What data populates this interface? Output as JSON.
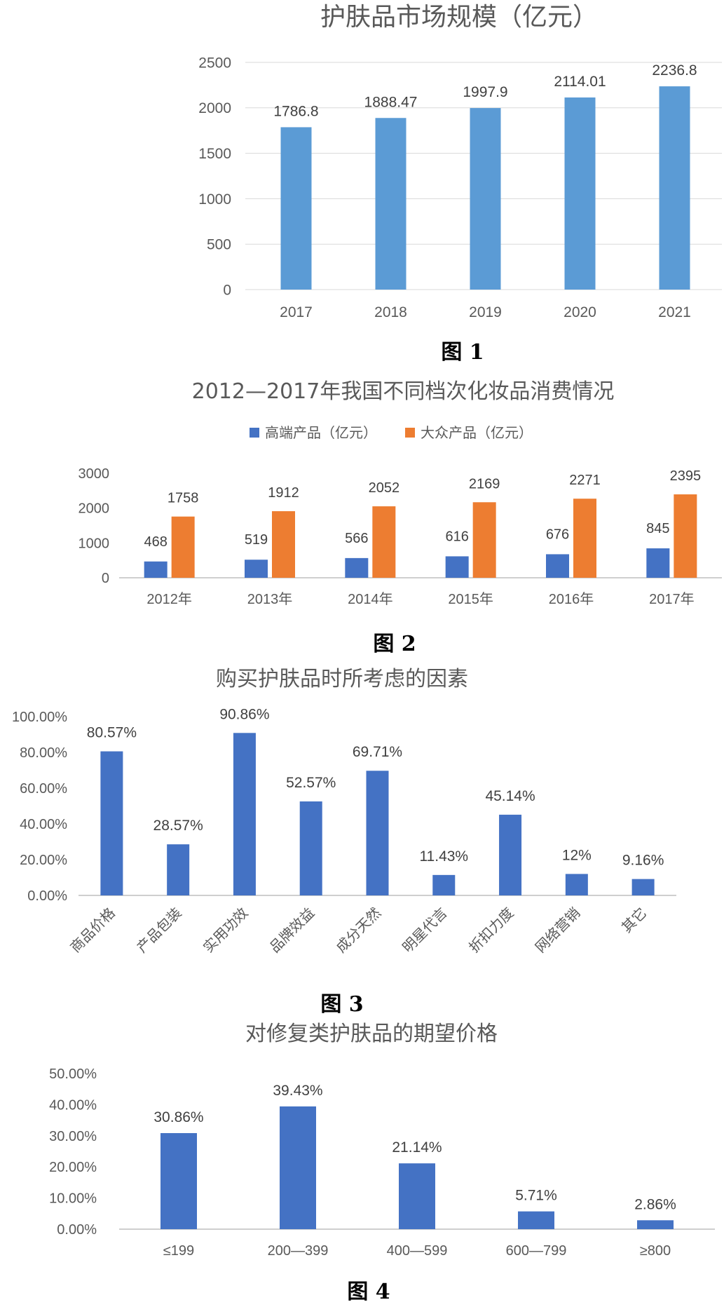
{
  "chart_data": [
    {
      "type": "bar",
      "title": "护肤品市场规模（亿元）",
      "caption": "图 1",
      "categories": [
        "2017",
        "2018",
        "2019",
        "2020",
        "2021"
      ],
      "values": [
        1786.8,
        1888.47,
        1997.9,
        2114.01,
        2236.8
      ],
      "value_labels": [
        "1786.8",
        "1888.47",
        "1997.9",
        "2114.01",
        "2236.8"
      ],
      "yticks": [
        "0",
        "500",
        "1000",
        "1500",
        "2000",
        "2500"
      ],
      "ylim": [
        0,
        2500
      ],
      "grid": true,
      "color": "#5b9bd5"
    },
    {
      "type": "bar",
      "title": "2012—2017年我国不同档次化妆品消费情况",
      "caption": "图 2",
      "categories": [
        "2012年",
        "2013年",
        "2014年",
        "2015年",
        "2016年",
        "2017年"
      ],
      "series": [
        {
          "name": "高端产品（亿元）",
          "values": [
            468,
            519,
            566,
            616,
            676,
            845
          ],
          "color": "#4472c4"
        },
        {
          "name": "大众产品（亿元）",
          "values": [
            1758,
            1912,
            2052,
            2169,
            2271,
            2395
          ],
          "color": "#ed7d31"
        }
      ],
      "yticks": [
        "0",
        "1000",
        "2000",
        "3000"
      ],
      "ylim": [
        0,
        3000
      ],
      "legend": "top",
      "grid": false
    },
    {
      "type": "bar",
      "title": "购买护肤品时所考虑的因素",
      "caption": "图 3",
      "categories": [
        "商品价格",
        "产品包装",
        "实用功效",
        "品牌效益",
        "成分天然",
        "明星代言",
        "折扣力度",
        "网络营销",
        "其它"
      ],
      "values": [
        80.57,
        28.57,
        90.86,
        52.57,
        69.71,
        11.43,
        45.14,
        12,
        9.16
      ],
      "value_labels": [
        "80.57%",
        "28.57%",
        "90.86%",
        "52.57%",
        "69.71%",
        "11.43%",
        "45.14%",
        "12%",
        "9.16%"
      ],
      "yticks": [
        "0.00%",
        "20.00%",
        "40.00%",
        "60.00%",
        "80.00%",
        "100.00%"
      ],
      "ylim": [
        0,
        100
      ],
      "grid": false,
      "color": "#4472c4"
    },
    {
      "type": "bar",
      "title": "对修复类护肤品的期望价格",
      "caption": "图 4",
      "categories": [
        "≤199",
        "200—399",
        "400—599",
        "600—799",
        "≥800"
      ],
      "values": [
        30.86,
        39.43,
        21.14,
        5.71,
        2.86
      ],
      "value_labels": [
        "30.86%",
        "39.43%",
        "21.14%",
        "5.71%",
        "2.86%"
      ],
      "yticks": [
        "0.00%",
        "10.00%",
        "20.00%",
        "30.00%",
        "40.00%",
        "50.00%"
      ],
      "ylim": [
        0,
        50
      ],
      "grid": false,
      "color": "#4472c4"
    }
  ]
}
